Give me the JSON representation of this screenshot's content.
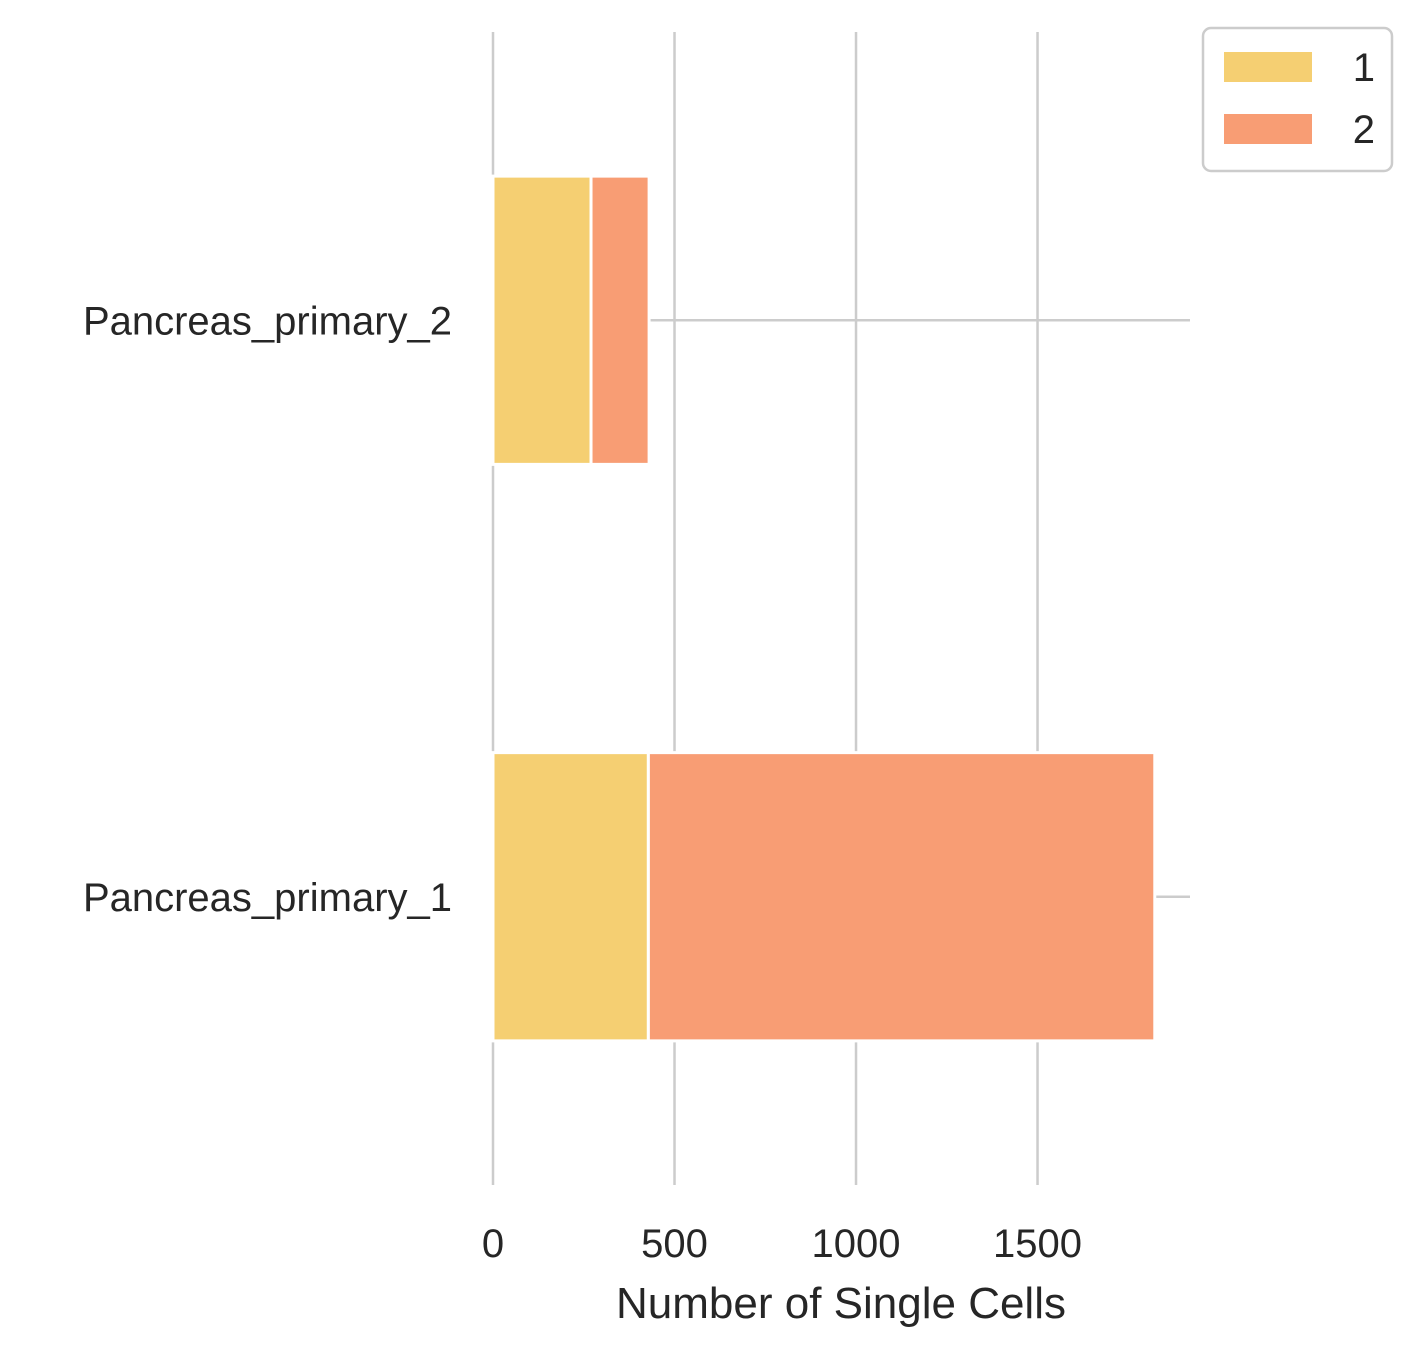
{
  "chart_data": {
    "type": "bar",
    "orientation": "horizontal",
    "stacked": true,
    "categories": [
      "Pancreas_primary_2",
      "Pancreas_primary_1"
    ],
    "series": [
      {
        "name": "1",
        "values": [
          270,
          428
        ],
        "color": "#F5CF72"
      },
      {
        "name": "2",
        "values": [
          160,
          1395
        ],
        "color": "#F89D74"
      }
    ],
    "xlabel": "Number of Single Cells",
    "ylabel": "",
    "xlim": [
      0,
      1920
    ],
    "xticks": [
      0,
      500,
      1000,
      1500
    ],
    "grid": true,
    "legend_position": "top-right outside"
  }
}
